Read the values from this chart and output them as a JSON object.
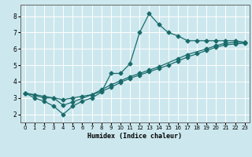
{
  "xlabel": "Humidex (Indice chaleur)",
  "bg_color": "#cce8ee",
  "line_color": "#1a6b6b",
  "grid_major_color": "#ffffff",
  "grid_minor_color": "#f0b8b8",
  "xlim": [
    -0.5,
    23.5
  ],
  "ylim": [
    1.5,
    8.7
  ],
  "xticks": [
    0,
    1,
    2,
    3,
    4,
    5,
    6,
    7,
    8,
    9,
    10,
    11,
    12,
    13,
    14,
    15,
    16,
    17,
    18,
    19,
    20,
    21,
    22,
    23
  ],
  "yticks": [
    2,
    3,
    4,
    5,
    6,
    7,
    8
  ],
  "line1_x": [
    0,
    1,
    2,
    3,
    4,
    5,
    6,
    7,
    8,
    9,
    10,
    11,
    12,
    13,
    14,
    15,
    16,
    17,
    18,
    19,
    20,
    21,
    22,
    23
  ],
  "line1_y": [
    3.3,
    3.0,
    2.8,
    2.5,
    2.0,
    2.5,
    2.8,
    3.0,
    3.35,
    4.5,
    4.5,
    5.1,
    7.0,
    8.15,
    7.5,
    7.0,
    6.8,
    6.5,
    6.5,
    6.5,
    6.5,
    6.5,
    6.5,
    6.4
  ],
  "line2_x": [
    0,
    2,
    3,
    4,
    5,
    7,
    8,
    9,
    10,
    11,
    12,
    13,
    14,
    16,
    17,
    19,
    20,
    21,
    22,
    23
  ],
  "line2_y": [
    3.3,
    3.0,
    3.0,
    2.55,
    2.75,
    3.2,
    3.5,
    3.8,
    4.05,
    4.3,
    4.5,
    4.7,
    4.9,
    5.4,
    5.65,
    6.0,
    6.2,
    6.35,
    6.4,
    6.4
  ],
  "line3_x": [
    0,
    1,
    2,
    3,
    4,
    5,
    6,
    7,
    8,
    9,
    10,
    11,
    12,
    13,
    14,
    15,
    16,
    17,
    18,
    19,
    20,
    21,
    22,
    23
  ],
  "line3_y": [
    3.3,
    3.2,
    3.1,
    3.0,
    2.9,
    3.0,
    3.1,
    3.2,
    3.4,
    3.65,
    3.95,
    4.2,
    4.4,
    4.6,
    4.8,
    5.0,
    5.25,
    5.5,
    5.7,
    5.9,
    6.1,
    6.25,
    6.3,
    6.35
  ]
}
